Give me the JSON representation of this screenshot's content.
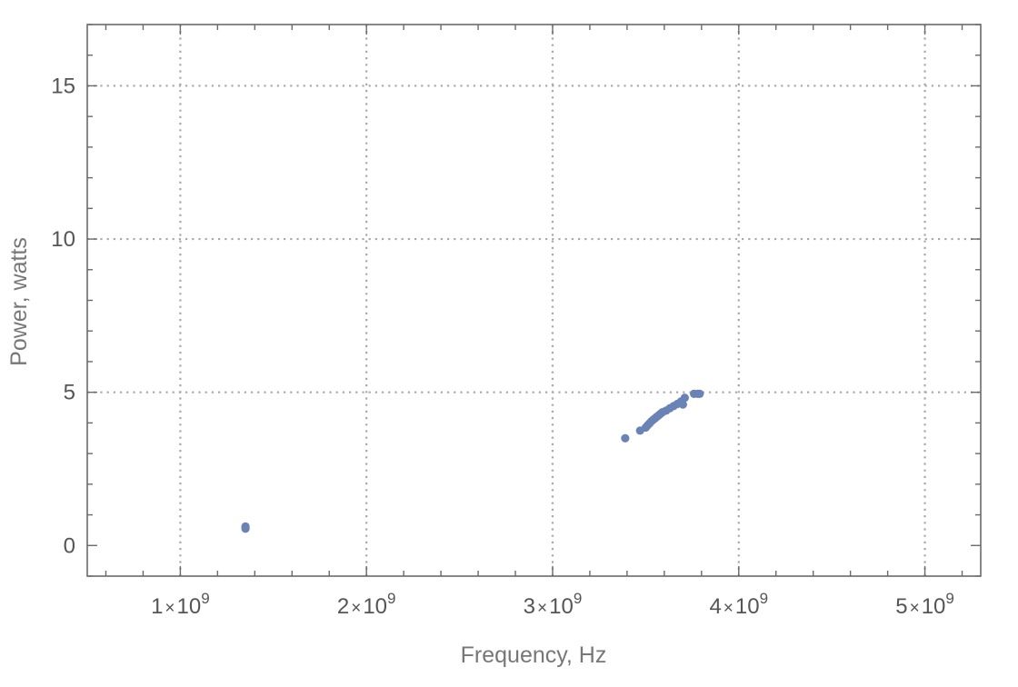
{
  "chart_data": {
    "type": "scatter",
    "title": "",
    "xlabel": "Frequency, Hz",
    "ylabel": "Power, watts",
    "xlim": [
      500000000,
      5300000000
    ],
    "ylim": [
      -1,
      17
    ],
    "grid": true,
    "x_ticks": [
      1000000000,
      2000000000,
      3000000000,
      4000000000,
      5000000000
    ],
    "x_tick_labels": [
      {
        "mantissa": "1",
        "exponent": "9"
      },
      {
        "mantissa": "2",
        "exponent": "9"
      },
      {
        "mantissa": "3",
        "exponent": "9"
      },
      {
        "mantissa": "4",
        "exponent": "9"
      },
      {
        "mantissa": "5",
        "exponent": "9"
      }
    ],
    "y_ticks": [
      0,
      5,
      10,
      15
    ],
    "y_tick_labels": [
      "0",
      "5",
      "10",
      "15"
    ],
    "point_color": "#6b82b5",
    "series": [
      {
        "points": [
          {
            "x": 1350000000,
            "y": 0.55
          },
          {
            "x": 1350000000,
            "y": 0.6
          },
          {
            "x": 1350000000,
            "y": 0.62
          },
          {
            "x": 3390000000,
            "y": 3.5
          },
          {
            "x": 3470000000,
            "y": 3.75
          },
          {
            "x": 3500000000,
            "y": 3.85
          },
          {
            "x": 3510000000,
            "y": 3.92
          },
          {
            "x": 3520000000,
            "y": 3.98
          },
          {
            "x": 3530000000,
            "y": 4.05
          },
          {
            "x": 3540000000,
            "y": 4.1
          },
          {
            "x": 3550000000,
            "y": 4.15
          },
          {
            "x": 3560000000,
            "y": 4.2
          },
          {
            "x": 3570000000,
            "y": 4.25
          },
          {
            "x": 3580000000,
            "y": 4.3
          },
          {
            "x": 3590000000,
            "y": 4.35
          },
          {
            "x": 3610000000,
            "y": 4.4
          },
          {
            "x": 3630000000,
            "y": 4.48
          },
          {
            "x": 3650000000,
            "y": 4.55
          },
          {
            "x": 3670000000,
            "y": 4.62
          },
          {
            "x": 3690000000,
            "y": 4.7
          },
          {
            "x": 3700000000,
            "y": 4.6
          },
          {
            "x": 3710000000,
            "y": 4.82
          },
          {
            "x": 3760000000,
            "y": 4.95
          },
          {
            "x": 3780000000,
            "y": 4.95
          },
          {
            "x": 3790000000,
            "y": 4.95
          }
        ]
      }
    ]
  }
}
